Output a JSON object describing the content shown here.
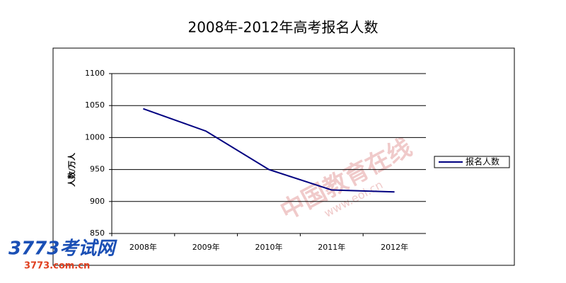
{
  "chart_data": {
    "type": "line",
    "title": "2008年-2012年高考报名人数",
    "y_label": "人数/万人",
    "categories": [
      "2008年",
      "2009年",
      "2010年",
      "2011年",
      "2012年"
    ],
    "series": [
      {
        "name": "报名人数",
        "color": "#000080",
        "values": [
          1045,
          1010,
          950,
          918,
          915
        ]
      }
    ],
    "ylim": [
      850,
      1100
    ],
    "yticks": [
      850,
      900,
      950,
      1000,
      1050,
      1100
    ],
    "grid": true,
    "legend": "right",
    "watermarks": [
      "中国教育在线",
      "www.eol.cn",
      "3773考试网",
      "3773.com.cn"
    ]
  }
}
